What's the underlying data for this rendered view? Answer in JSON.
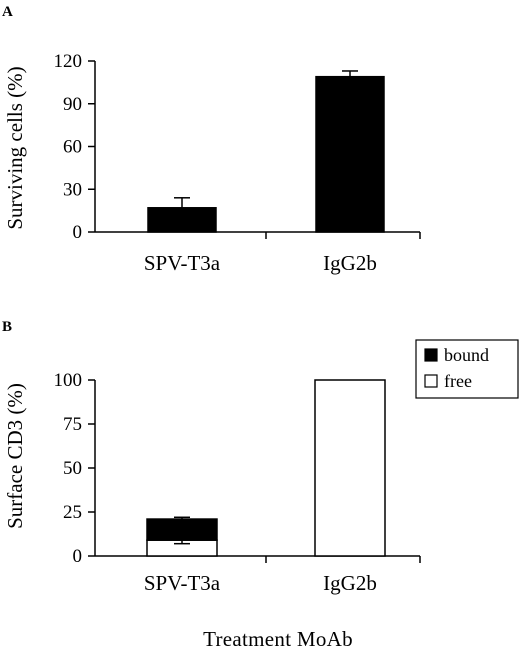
{
  "chart_data": [
    {
      "panel": "A",
      "type": "bar",
      "ylabel": "Surviving cells (%)",
      "ylim": [
        0,
        120
      ],
      "yticks": [
        0,
        30,
        60,
        90,
        120
      ],
      "categories": [
        "SPV-T3a",
        "IgG2b"
      ],
      "series": [
        {
          "values": [
            17,
            109
          ],
          "error": [
            7,
            4
          ],
          "color": "#000000"
        }
      ]
    },
    {
      "panel": "B",
      "type": "bar",
      "stacked": true,
      "ylabel": "Surface CD3 (%)",
      "ylim": [
        0,
        100
      ],
      "yticks": [
        0,
        25,
        50,
        75,
        100
      ],
      "categories": [
        "SPV-T3a",
        "IgG2b"
      ],
      "legend_position": "top-right",
      "series": [
        {
          "name": "free",
          "values": [
            9,
            100
          ],
          "error": [
            2,
            0
          ],
          "color": "#ffffff"
        },
        {
          "name": "bound",
          "values": [
            12,
            0
          ],
          "error": [
            1,
            0
          ],
          "color": "#000000"
        }
      ]
    }
  ],
  "xlabel": "Treatment MoAb"
}
